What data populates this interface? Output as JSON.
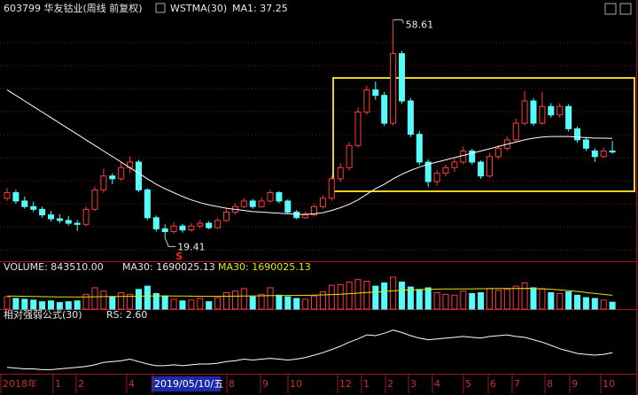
{
  "chart_data": [
    {
      "type": "candlestick",
      "title": "603799 华友钴业(周线 前复权)",
      "indicator": "WSTMA(30)",
      "ylim": [
        15,
        62
      ],
      "candles": {
        "up_color": "#ff3c3c",
        "down_color": "#54fcfc",
        "values": [
          [
            26.5,
            28.3,
            26.0,
            27.5
          ],
          [
            27.5,
            28.0,
            25.5,
            26.0
          ],
          [
            26.0,
            26.8,
            24.6,
            25.0
          ],
          [
            25.0,
            25.9,
            24.0,
            24.5
          ],
          [
            24.5,
            25.0,
            23.0,
            23.5
          ],
          [
            23.5,
            24.2,
            22.3,
            22.8
          ],
          [
            22.8,
            23.6,
            22.0,
            22.5
          ],
          [
            22.5,
            23.3,
            21.6,
            22.0
          ],
          [
            22.0,
            22.6,
            20.6,
            21.8
          ],
          [
            21.8,
            25.0,
            21.5,
            24.5
          ],
          [
            24.5,
            28.6,
            24.2,
            28.0
          ],
          [
            28.0,
            31.8,
            27.5,
            30.5
          ],
          [
            30.5,
            31.0,
            29.0,
            30.0
          ],
          [
            30.0,
            33.0,
            29.6,
            32.0
          ],
          [
            32.0,
            34.0,
            31.0,
            33.0
          ],
          [
            33.0,
            33.4,
            27.6,
            28.0
          ],
          [
            28.0,
            28.3,
            22.6,
            23.0
          ],
          [
            23.0,
            23.4,
            20.5,
            21.0
          ],
          [
            21.0,
            21.8,
            19.41,
            20.5
          ],
          [
            20.5,
            22.2,
            20.1,
            21.5
          ],
          [
            21.5,
            21.9,
            20.3,
            20.8
          ],
          [
            20.8,
            22.0,
            20.5,
            21.5
          ],
          [
            21.5,
            22.6,
            21.0,
            22.0
          ],
          [
            22.0,
            22.4,
            20.9,
            21.2
          ],
          [
            21.2,
            23.0,
            21.0,
            22.5
          ],
          [
            22.5,
            24.6,
            22.2,
            24.0
          ],
          [
            24.0,
            25.6,
            23.6,
            25.0
          ],
          [
            25.0,
            26.5,
            24.7,
            26.0
          ],
          [
            26.0,
            26.4,
            24.6,
            25.0
          ],
          [
            25.0,
            26.6,
            24.8,
            26.0
          ],
          [
            26.0,
            28.0,
            25.7,
            27.5
          ],
          [
            27.5,
            27.8,
            25.6,
            26.0
          ],
          [
            26.0,
            26.3,
            23.7,
            24.0
          ],
          [
            24.0,
            24.4,
            22.7,
            23.0
          ],
          [
            23.0,
            24.1,
            22.8,
            23.5
          ],
          [
            23.5,
            25.4,
            23.2,
            25.0
          ],
          [
            25.0,
            27.0,
            24.6,
            26.5
          ],
          [
            26.5,
            30.6,
            26.0,
            30.0
          ],
          [
            30.0,
            32.8,
            29.4,
            32.0
          ],
          [
            32.0,
            36.6,
            31.5,
            36.0
          ],
          [
            36.0,
            42.8,
            35.6,
            42.0
          ],
          [
            42.0,
            46.8,
            41.5,
            46.0
          ],
          [
            46.0,
            47.5,
            44.2,
            45.0
          ],
          [
            45.0,
            45.6,
            39.5,
            40.0
          ],
          [
            40.0,
            58.61,
            39.6,
            52.5
          ],
          [
            52.5,
            53.0,
            43.5,
            44.0
          ],
          [
            44.0,
            44.5,
            37.5,
            38.0
          ],
          [
            38.0,
            38.6,
            32.5,
            33.0
          ],
          [
            33.0,
            33.5,
            28.5,
            29.5
          ],
          [
            29.5,
            31.6,
            28.8,
            31.0
          ],
          [
            31.0,
            32.6,
            30.4,
            32.0
          ],
          [
            32.0,
            33.6,
            31.2,
            33.0
          ],
          [
            33.0,
            35.8,
            32.6,
            35.0
          ],
          [
            35.0,
            35.4,
            32.6,
            33.0
          ],
          [
            33.0,
            33.3,
            30.0,
            30.5
          ],
          [
            30.5,
            34.6,
            30.2,
            34.0
          ],
          [
            34.0,
            36.0,
            33.5,
            35.5
          ],
          [
            35.5,
            37.6,
            35.0,
            37.0
          ],
          [
            37.0,
            40.8,
            36.5,
            40.0
          ],
          [
            40.0,
            45.8,
            39.6,
            44.0
          ],
          [
            44.0,
            44.5,
            39.5,
            40.0
          ],
          [
            40.0,
            45.6,
            39.7,
            43.0
          ],
          [
            43.0,
            43.6,
            41.0,
            41.5
          ],
          [
            41.5,
            43.6,
            41.0,
            43.0
          ],
          [
            43.0,
            43.4,
            38.5,
            39.0
          ],
          [
            39.0,
            39.4,
            36.5,
            37.0
          ],
          [
            37.0,
            37.5,
            35.0,
            35.5
          ],
          [
            35.0,
            35.5,
            33.0,
            34.0
          ],
          [
            34.0,
            35.6,
            33.8,
            35.0
          ],
          [
            35.0,
            36.8,
            34.5,
            34.8
          ]
        ]
      },
      "ma": {
        "label": "MA1: 37.25",
        "color": "#ffffff",
        "values": [
          46,
          45,
          44,
          43,
          42,
          41,
          40,
          39,
          38,
          37,
          36,
          35,
          34,
          33,
          32,
          31,
          30,
          29,
          28.2,
          27.5,
          26.8,
          26.2,
          25.7,
          25.3,
          25,
          24.7,
          24.5,
          24.3,
          24.1,
          24,
          23.9,
          23.8,
          23.7,
          23.6,
          23.6,
          23.7,
          23.9,
          24.3,
          24.8,
          25.4,
          26.2,
          27.2,
          28.2,
          29,
          30,
          30.8,
          31.5,
          32.1,
          32.6,
          33,
          33.4,
          33.8,
          34.2,
          34.6,
          35,
          35.4,
          35.8,
          36.2,
          36.6,
          37,
          37.3,
          37.5,
          37.6,
          37.6,
          37.6,
          37.5,
          37.4,
          37.3,
          37.3,
          37.25
        ]
      },
      "annotations": [
        {
          "label": "58.61",
          "value": 58.61
        },
        {
          "label": "19.41",
          "value": 19.41
        }
      ],
      "signal": {
        "label": "S",
        "color": "#ff2020"
      },
      "x_labels": [
        "2018年",
        "1",
        "2",
        "4",
        "2019/05/10/五",
        "8",
        "9",
        "10",
        "12",
        "1",
        "2",
        "3",
        "4",
        "5",
        "6",
        "7",
        "8",
        "9",
        "10"
      ]
    },
    {
      "type": "bar",
      "title": "VOLUME: 843510.00",
      "ylim": [
        0,
        4000000
      ],
      "values": [
        1500000,
        1300000,
        1200000,
        1100000,
        900000,
        1000000,
        800000,
        900000,
        1000000,
        1800000,
        2600000,
        2200000,
        1500000,
        2000000,
        1800000,
        2400000,
        2800000,
        1900000,
        1600000,
        1200000,
        1000000,
        1100000,
        1300000,
        900000,
        1400000,
        2000000,
        2200000,
        2500000,
        1500000,
        1800000,
        2600000,
        1700000,
        1500000,
        1300000,
        1200000,
        1600000,
        2100000,
        2900000,
        3000000,
        3300000,
        3600000,
        3400000,
        2800000,
        3200000,
        3900000,
        3300000,
        2700000,
        2400000,
        2600000,
        2000000,
        1800000,
        1700000,
        2200000,
        1900000,
        2000000,
        2500000,
        2300000,
        2400000,
        2800000,
        3200000,
        2600000,
        2500000,
        2000000,
        1900000,
        2100000,
        1700000,
        1400000,
        1300000,
        1100000,
        843510
      ],
      "ma": {
        "labels": [
          "MA30: 1690025.13",
          "MA30: 1690025.13"
        ],
        "color": "#e6e600",
        "values": [
          1600000,
          1580000,
          1560000,
          1540000,
          1520000,
          1500000,
          1490000,
          1480000,
          1470000,
          1480000,
          1500000,
          1520000,
          1530000,
          1550000,
          1560000,
          1580000,
          1600000,
          1610000,
          1610000,
          1600000,
          1590000,
          1580000,
          1570000,
          1560000,
          1560000,
          1570000,
          1580000,
          1600000,
          1610000,
          1620000,
          1640000,
          1650000,
          1660000,
          1670000,
          1680000,
          1700000,
          1730000,
          1770000,
          1820000,
          1880000,
          1950000,
          2020000,
          2080000,
          2150000,
          2230000,
          2290000,
          2340000,
          2380000,
          2420000,
          2440000,
          2450000,
          2460000,
          2470000,
          2480000,
          2490000,
          2500000,
          2510000,
          2510000,
          2520000,
          2530000,
          2510000,
          2470000,
          2420000,
          2350000,
          2260000,
          2150000,
          2020000,
          1900000,
          1790000,
          1690025.13
        ]
      }
    },
    {
      "type": "line",
      "title": "相对强弱公式(30)",
      "label": "RS: 2.60",
      "color": "#ffffff",
      "ylim": [
        0,
        7
      ],
      "values": [
        0.8,
        0.7,
        0.6,
        0.6,
        0.5,
        0.5,
        0.6,
        0.7,
        0.8,
        0.9,
        1.1,
        1.4,
        1.5,
        1.6,
        1.8,
        1.5,
        1.2,
        1.0,
        1.0,
        1.1,
        1.0,
        1.1,
        1.2,
        1.2,
        1.3,
        1.5,
        1.6,
        1.8,
        1.7,
        1.8,
        1.9,
        1.8,
        1.7,
        1.8,
        2.0,
        2.3,
        2.6,
        3.0,
        3.4,
        3.9,
        4.3,
        4.8,
        4.7,
        5.0,
        5.4,
        5.1,
        4.7,
        4.4,
        4.2,
        4.3,
        4.4,
        4.5,
        4.6,
        4.5,
        4.4,
        4.6,
        4.7,
        4.8,
        4.6,
        4.5,
        4.2,
        3.9,
        3.5,
        3.1,
        2.8,
        2.5,
        2.4,
        2.3,
        2.4,
        2.6
      ]
    }
  ]
}
